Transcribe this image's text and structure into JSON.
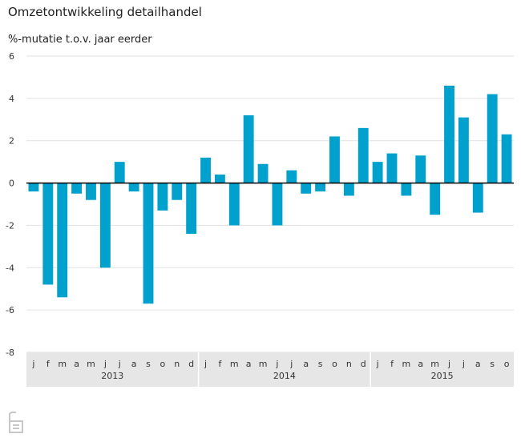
{
  "title": "Omzetontwikkeling detailhandel",
  "subtitle": "%-mutatie t.o.v. jaar eerder",
  "colors": {
    "bar": "#00a1cd",
    "grid": "#e2e2e2",
    "axis_band": "#e6e6e6",
    "zero_line": "#000000"
  },
  "logo": {
    "icon": "cbs-logo-icon",
    "text": "cbs"
  },
  "chart_data": {
    "type": "bar",
    "title": "Omzetontwikkeling detailhandel",
    "ylabel": "%-mutatie t.o.v. jaar eerder",
    "ylim": [
      -8,
      6
    ],
    "yticks": [
      -8,
      -6,
      -4,
      -2,
      0,
      2,
      4,
      6
    ],
    "grid": true,
    "categories": [
      "j",
      "f",
      "m",
      "a",
      "m",
      "j",
      "j",
      "a",
      "s",
      "o",
      "n",
      "d",
      "j",
      "f",
      "m",
      "a",
      "m",
      "j",
      "j",
      "a",
      "s",
      "o",
      "n",
      "d",
      "j",
      "f",
      "m",
      "a",
      "m",
      "j",
      "j",
      "a",
      "s",
      "o"
    ],
    "year_labels": [
      {
        "label": "2013",
        "start": 0,
        "end": 11
      },
      {
        "label": "2014",
        "start": 12,
        "end": 23
      },
      {
        "label": "2015",
        "start": 24,
        "end": 33
      }
    ],
    "values": [
      -0.4,
      -4.8,
      -5.4,
      -0.5,
      -0.8,
      -4.0,
      1.0,
      -0.4,
      -5.7,
      -1.3,
      -0.8,
      -2.4,
      1.2,
      0.4,
      -2.0,
      3.2,
      0.9,
      -2.0,
      0.6,
      -0.5,
      -0.4,
      2.2,
      -0.6,
      2.6,
      1.0,
      1.4,
      -0.6,
      1.3,
      -1.5,
      4.6,
      3.1,
      -1.4,
      4.2,
      2.3
    ]
  }
}
